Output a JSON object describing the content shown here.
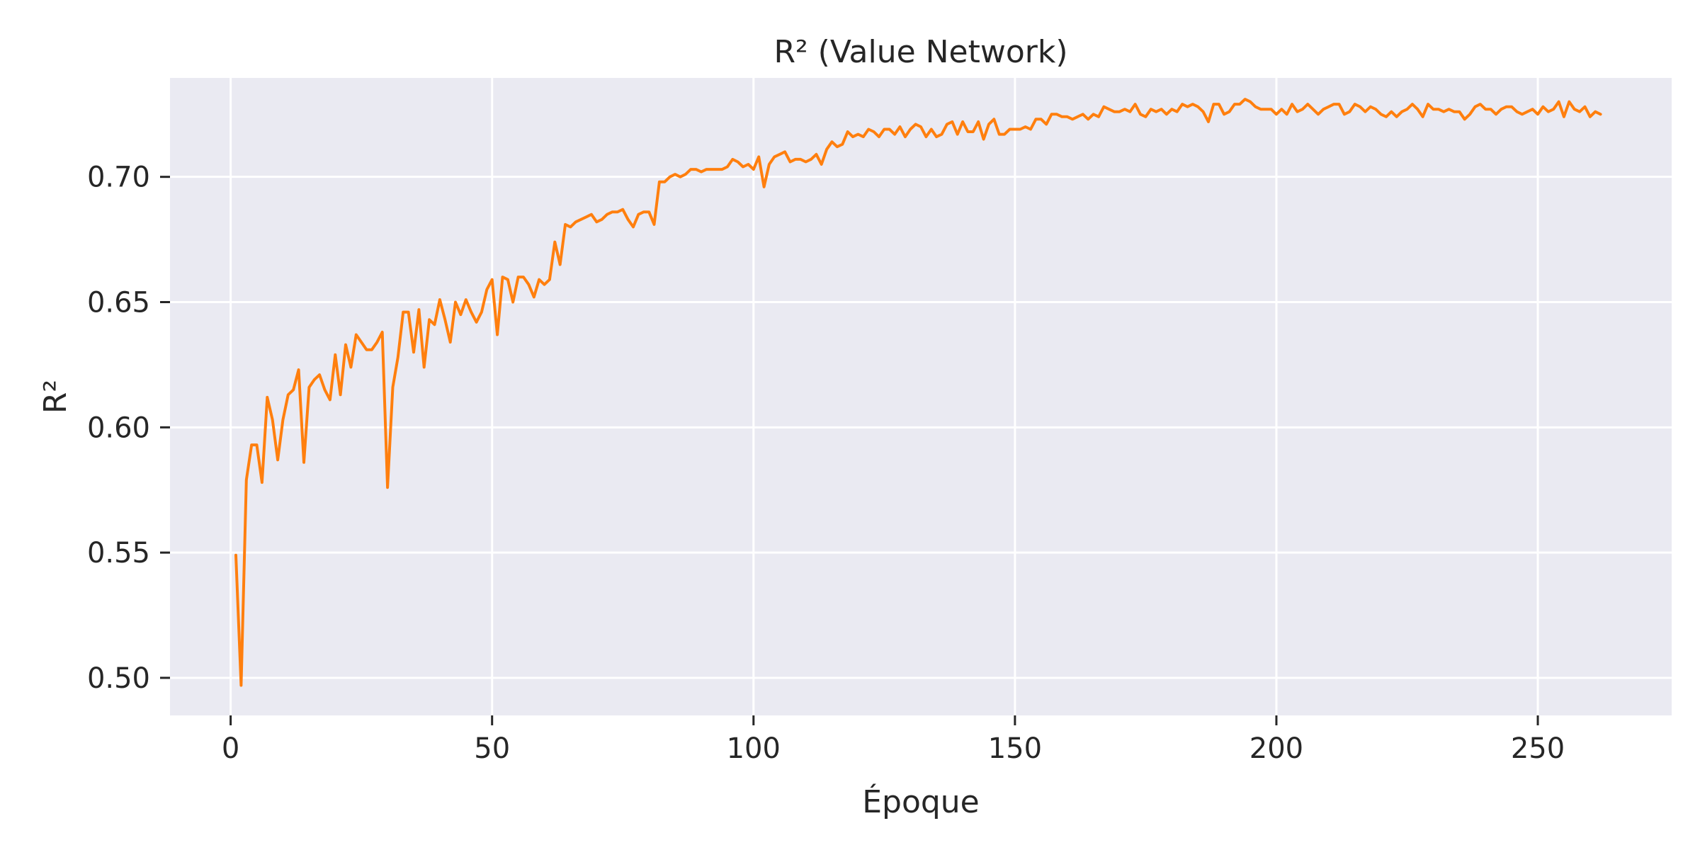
{
  "chart_data": {
    "type": "line",
    "title": "R² (Value Network)",
    "xlabel": "Époque",
    "ylabel": "R²",
    "xlim": [
      -11.6,
      275.6
    ],
    "ylim": [
      0.485,
      0.7395
    ],
    "xticks": [
      0,
      50,
      100,
      150,
      200,
      250
    ],
    "xtick_labels": [
      "0",
      "50",
      "100",
      "150",
      "200",
      "250"
    ],
    "yticks": [
      0.5,
      0.55,
      0.6,
      0.65,
      0.7
    ],
    "ytick_labels": [
      "0.50",
      "0.55",
      "0.60",
      "0.65",
      "0.70"
    ],
    "grid": true,
    "colors": {
      "background": "#eaeaf2",
      "grid": "#ffffff",
      "line": "#ff7f0e",
      "text": "#262626"
    },
    "series": [
      {
        "x": [
          1,
          2,
          3,
          4,
          5,
          6,
          7,
          8,
          9,
          10,
          11,
          12,
          13,
          14,
          15,
          16,
          17,
          18,
          19,
          20,
          21,
          22,
          23,
          24,
          25,
          26,
          27,
          28,
          29,
          30,
          31,
          32,
          33,
          34,
          35,
          36,
          37,
          38,
          39,
          40,
          41,
          42,
          43,
          44,
          45,
          46,
          47,
          48,
          49,
          50,
          51,
          52,
          53,
          54,
          55,
          56,
          57,
          58,
          59,
          60,
          61,
          62,
          63,
          64,
          65,
          66,
          67,
          68,
          69,
          70,
          71,
          72,
          73,
          74,
          75,
          76,
          77,
          78,
          79,
          80,
          81,
          82,
          83,
          84,
          85,
          86,
          87,
          88,
          89,
          90,
          91,
          92,
          93,
          94,
          95,
          96,
          97,
          98,
          99,
          100,
          101,
          102,
          103,
          104,
          105,
          106,
          107,
          108,
          109,
          110,
          111,
          112,
          113,
          114,
          115,
          116,
          117,
          118,
          119,
          120,
          121,
          122,
          123,
          124,
          125,
          126,
          127,
          128,
          129,
          130,
          131,
          132,
          133,
          134,
          135,
          136,
          137,
          138,
          139,
          140,
          141,
          142,
          143,
          144,
          145,
          146,
          147,
          148,
          149,
          150,
          151,
          152,
          153,
          154,
          155,
          156,
          157,
          158,
          159,
          160,
          161,
          162,
          163,
          164,
          165,
          166,
          167,
          168,
          169,
          170,
          171,
          172,
          173,
          174,
          175,
          176,
          177,
          178,
          179,
          180,
          181,
          182,
          183,
          184,
          185,
          186,
          187,
          188,
          189,
          190,
          191,
          192,
          193,
          194,
          195,
          196,
          197,
          198,
          199,
          200,
          201,
          202,
          203,
          204,
          205,
          206,
          207,
          208,
          209,
          210,
          211,
          212,
          213,
          214,
          215,
          216,
          217,
          218,
          219,
          220,
          221,
          222,
          223,
          224,
          225,
          226,
          227,
          228,
          229,
          230,
          231,
          232,
          233,
          234,
          235,
          236,
          237,
          238,
          239,
          240,
          241,
          242,
          243,
          244,
          245,
          246,
          247,
          248,
          249,
          250,
          251,
          252,
          253,
          254,
          255,
          256,
          257,
          258,
          259,
          260,
          261,
          262
        ],
        "y": [
          0.549,
          0.497,
          0.579,
          0.593,
          0.593,
          0.578,
          0.612,
          0.603,
          0.587,
          0.603,
          0.613,
          0.615,
          0.623,
          0.586,
          0.616,
          0.619,
          0.621,
          0.615,
          0.611,
          0.629,
          0.613,
          0.633,
          0.624,
          0.637,
          0.634,
          0.631,
          0.631,
          0.634,
          0.638,
          0.576,
          0.616,
          0.628,
          0.646,
          0.646,
          0.63,
          0.647,
          0.624,
          0.643,
          0.641,
          0.651,
          0.643,
          0.634,
          0.65,
          0.645,
          0.651,
          0.646,
          0.642,
          0.646,
          0.655,
          0.659,
          0.637,
          0.66,
          0.659,
          0.65,
          0.66,
          0.66,
          0.657,
          0.652,
          0.659,
          0.657,
          0.659,
          0.674,
          0.665,
          0.681,
          0.68,
          0.682,
          0.683,
          0.684,
          0.685,
          0.682,
          0.683,
          0.685,
          0.686,
          0.686,
          0.687,
          0.683,
          0.68,
          0.685,
          0.686,
          0.686,
          0.681,
          0.698,
          0.698,
          0.7,
          0.701,
          0.7,
          0.701,
          0.703,
          0.703,
          0.702,
          0.703,
          0.703,
          0.703,
          0.703,
          0.704,
          0.707,
          0.706,
          0.704,
          0.705,
          0.703,
          0.708,
          0.696,
          0.705,
          0.708,
          0.709,
          0.71,
          0.706,
          0.707,
          0.707,
          0.706,
          0.707,
          0.709,
          0.705,
          0.711,
          0.714,
          0.712,
          0.713,
          0.718,
          0.716,
          0.717,
          0.716,
          0.719,
          0.718,
          0.716,
          0.719,
          0.719,
          0.717,
          0.72,
          0.716,
          0.719,
          0.721,
          0.72,
          0.716,
          0.719,
          0.716,
          0.717,
          0.721,
          0.722,
          0.717,
          0.722,
          0.718,
          0.718,
          0.722,
          0.715,
          0.721,
          0.723,
          0.717,
          0.717,
          0.719,
          0.719,
          0.719,
          0.72,
          0.719,
          0.723,
          0.723,
          0.721,
          0.725,
          0.725,
          0.724,
          0.724,
          0.723,
          0.724,
          0.725,
          0.723,
          0.725,
          0.724,
          0.728,
          0.727,
          0.726,
          0.726,
          0.727,
          0.726,
          0.729,
          0.725,
          0.724,
          0.727,
          0.726,
          0.727,
          0.725,
          0.727,
          0.726,
          0.729,
          0.728,
          0.729,
          0.728,
          0.726,
          0.722,
          0.729,
          0.729,
          0.725,
          0.726,
          0.729,
          0.729,
          0.731,
          0.73,
          0.728,
          0.727,
          0.727,
          0.727,
          0.725,
          0.727,
          0.725,
          0.729,
          0.726,
          0.727,
          0.729,
          0.727,
          0.725,
          0.727,
          0.728,
          0.729,
          0.729,
          0.725,
          0.726,
          0.729,
          0.728,
          0.726,
          0.728,
          0.727,
          0.725,
          0.724,
          0.726,
          0.724,
          0.726,
          0.727,
          0.729,
          0.727,
          0.724,
          0.729,
          0.727,
          0.727,
          0.726,
          0.727,
          0.726,
          0.726,
          0.723,
          0.725,
          0.728,
          0.729,
          0.727,
          0.727,
          0.725,
          0.727,
          0.728,
          0.728,
          0.726,
          0.725,
          0.726,
          0.727,
          0.725,
          0.728,
          0.726,
          0.727,
          0.73,
          0.724,
          0.73,
          0.727,
          0.726,
          0.728,
          0.724,
          0.726,
          0.725
        ]
      }
    ]
  }
}
